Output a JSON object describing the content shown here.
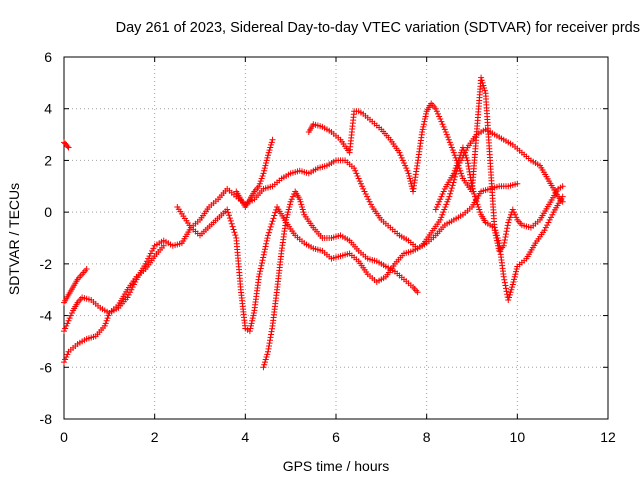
{
  "chart_data": {
    "type": "scatter",
    "title": "Day 261 of 2023, Sidereal Day-to-day VTEC variation (SDTVAR) for receiver prds",
    "xlabel": "GPS time / hours",
    "ylabel": "SDTVAR / TECUs",
    "xlim": [
      0,
      12
    ],
    "ylim": [
      -8,
      6
    ],
    "xticks": [
      "0",
      "2",
      "4",
      "6",
      "8",
      "10",
      "12"
    ],
    "yticks": [
      "-8",
      "-6",
      "-4",
      "-2",
      "0",
      "2",
      "4",
      "6"
    ],
    "grid": true,
    "marker": "+",
    "color": "#ff0000",
    "series": [
      {
        "name": "trace-1",
        "x": [
          0.0,
          0.1,
          0.3,
          0.5,
          0.7,
          0.9,
          1.0,
          1.2,
          1.4,
          1.6,
          1.8,
          2.0,
          2.2,
          2.4,
          2.6,
          2.8,
          3.0,
          3.2,
          3.4,
          3.6,
          3.8,
          4.0,
          4.2,
          4.4,
          4.6,
          4.8,
          5.0,
          5.2,
          5.4,
          5.6,
          5.8,
          6.0,
          6.2,
          6.4,
          6.6,
          6.8,
          7.0,
          7.2,
          7.4,
          7.6,
          7.8,
          8.0,
          8.2,
          8.4,
          8.6,
          8.8,
          9.0,
          9.2,
          9.4,
          9.6,
          9.8,
          10.0
        ],
        "y": [
          -5.8,
          -5.4,
          -5.1,
          -4.9,
          -4.8,
          -4.4,
          -3.9,
          -3.7,
          -3.3,
          -2.6,
          -2.0,
          -1.3,
          -1.1,
          -1.3,
          -1.2,
          -0.6,
          -0.3,
          0.2,
          0.5,
          0.9,
          0.6,
          0.3,
          0.5,
          0.9,
          1.0,
          1.3,
          1.5,
          1.6,
          1.5,
          1.7,
          1.8,
          2.0,
          2.0,
          1.7,
          0.9,
          0.2,
          -0.3,
          -0.6,
          -0.9,
          -1.1,
          -1.4,
          -1.2,
          -0.9,
          -0.5,
          -0.3,
          -0.1,
          0.2,
          0.8,
          0.9,
          1.0,
          1.0,
          1.1
        ]
      },
      {
        "name": "trace-2",
        "x": [
          0.0,
          0.05,
          0.1
        ],
        "y": [
          2.7,
          2.6,
          2.5
        ]
      },
      {
        "name": "trace-3",
        "x": [
          0.0,
          0.1,
          0.2,
          0.3,
          0.4,
          0.5
        ],
        "y": [
          -3.5,
          -3.2,
          -2.9,
          -2.6,
          -2.4,
          -2.2
        ]
      },
      {
        "name": "trace-4",
        "x": [
          0.0,
          0.1,
          0.2,
          0.3,
          0.4,
          0.6,
          0.8,
          1.0,
          1.2,
          1.4,
          1.6,
          1.8,
          2.0,
          2.2
        ],
        "y": [
          -4.6,
          -4.2,
          -3.8,
          -3.5,
          -3.3,
          -3.4,
          -3.7,
          -3.9,
          -3.6,
          -3.0,
          -2.5,
          -2.2,
          -1.7,
          -1.3
        ]
      },
      {
        "name": "trace-5",
        "x": [
          2.5,
          2.8,
          3.0,
          3.3,
          3.6,
          3.8,
          3.9,
          4.0,
          4.1,
          4.2,
          4.3,
          4.5,
          4.7,
          4.9,
          5.1,
          5.3,
          5.5,
          5.7,
          5.9,
          6.1,
          6.3,
          6.5,
          6.7,
          6.9,
          7.1,
          7.3,
          7.5,
          7.7,
          7.9,
          8.1,
          8.3,
          8.5,
          8.7,
          8.9,
          9.1,
          9.3,
          9.5,
          9.7,
          9.9,
          10.1,
          10.3,
          10.5,
          10.7,
          10.9,
          11.0
        ],
        "y": [
          0.2,
          -0.6,
          -0.9,
          -0.4,
          0.1,
          -1.0,
          -3.0,
          -4.5,
          -4.6,
          -3.8,
          -2.5,
          -0.9,
          0.2,
          -0.4,
          -0.9,
          -1.2,
          -1.4,
          -1.5,
          -1.8,
          -1.7,
          -1.6,
          -1.9,
          -2.4,
          -2.7,
          -2.5,
          -2.0,
          -1.6,
          -1.5,
          -1.3,
          -0.8,
          -0.3,
          0.6,
          1.8,
          2.5,
          3.0,
          3.2,
          3.0,
          2.8,
          2.6,
          2.3,
          2.0,
          1.8,
          1.2,
          0.6,
          0.4
        ]
      },
      {
        "name": "trace-6",
        "x": [
          4.4,
          4.5,
          4.6,
          4.7,
          4.8,
          4.9,
          5.0,
          5.1,
          5.2,
          5.3,
          5.5,
          5.7,
          5.9,
          6.1,
          6.3,
          6.5,
          6.7,
          6.9,
          7.1,
          7.3,
          7.5,
          7.7,
          7.8
        ],
        "y": [
          -6.0,
          -5.4,
          -4.4,
          -3.0,
          -1.5,
          -0.3,
          0.4,
          0.8,
          0.5,
          -0.1,
          -0.6,
          -1.0,
          -1.0,
          -0.9,
          -1.1,
          -1.5,
          -1.8,
          -1.9,
          -2.1,
          -2.3,
          -2.6,
          -2.9,
          -3.1
        ]
      },
      {
        "name": "trace-7",
        "x": [
          4.6,
          4.5,
          4.4,
          4.3,
          4.2,
          4.1,
          4.0,
          3.9,
          3.8
        ],
        "y": [
          2.8,
          2.2,
          1.5,
          1.0,
          0.8,
          0.5,
          0.2,
          0.5,
          0.8
        ]
      },
      {
        "name": "trace-8",
        "x": [
          5.4,
          5.5,
          5.7,
          5.9,
          6.1,
          6.3,
          6.4,
          6.5,
          6.6,
          6.8,
          7.0,
          7.2,
          7.4,
          7.6,
          7.7,
          7.8,
          7.9,
          8.0,
          8.1,
          8.2,
          8.4,
          8.6,
          8.8,
          9.0,
          9.1,
          9.2,
          9.3,
          9.4,
          9.5,
          9.6,
          9.7,
          9.8,
          9.9,
          10.0,
          10.1,
          10.3,
          10.5,
          10.7,
          10.9,
          11.0
        ],
        "y": [
          3.1,
          3.4,
          3.3,
          3.1,
          2.8,
          2.3,
          3.9,
          3.9,
          3.8,
          3.5,
          3.2,
          2.8,
          2.3,
          1.5,
          0.8,
          1.9,
          3.1,
          3.9,
          4.2,
          4.0,
          3.2,
          2.3,
          1.3,
          0.8,
          3.0,
          5.2,
          4.6,
          2.0,
          -0.7,
          -1.5,
          -1.3,
          -0.4,
          0.1,
          -0.3,
          -0.5,
          -0.6,
          -0.3,
          0.3,
          0.9,
          1.0
        ]
      },
      {
        "name": "trace-9",
        "x": [
          8.2,
          8.4,
          8.6,
          8.7,
          8.8,
          8.9,
          9.0,
          9.1,
          9.2,
          9.3,
          9.4,
          9.5,
          9.6,
          9.7,
          9.8,
          9.9,
          10.0,
          10.2,
          10.4,
          10.6,
          10.8,
          11.0
        ],
        "y": [
          0.1,
          0.9,
          1.5,
          2.0,
          2.5,
          2.0,
          1.0,
          0.4,
          -0.1,
          -0.4,
          -0.5,
          -0.6,
          -1.2,
          -2.5,
          -3.4,
          -2.8,
          -2.1,
          -1.8,
          -1.2,
          -0.7,
          0.0,
          0.6
        ]
      }
    ]
  }
}
